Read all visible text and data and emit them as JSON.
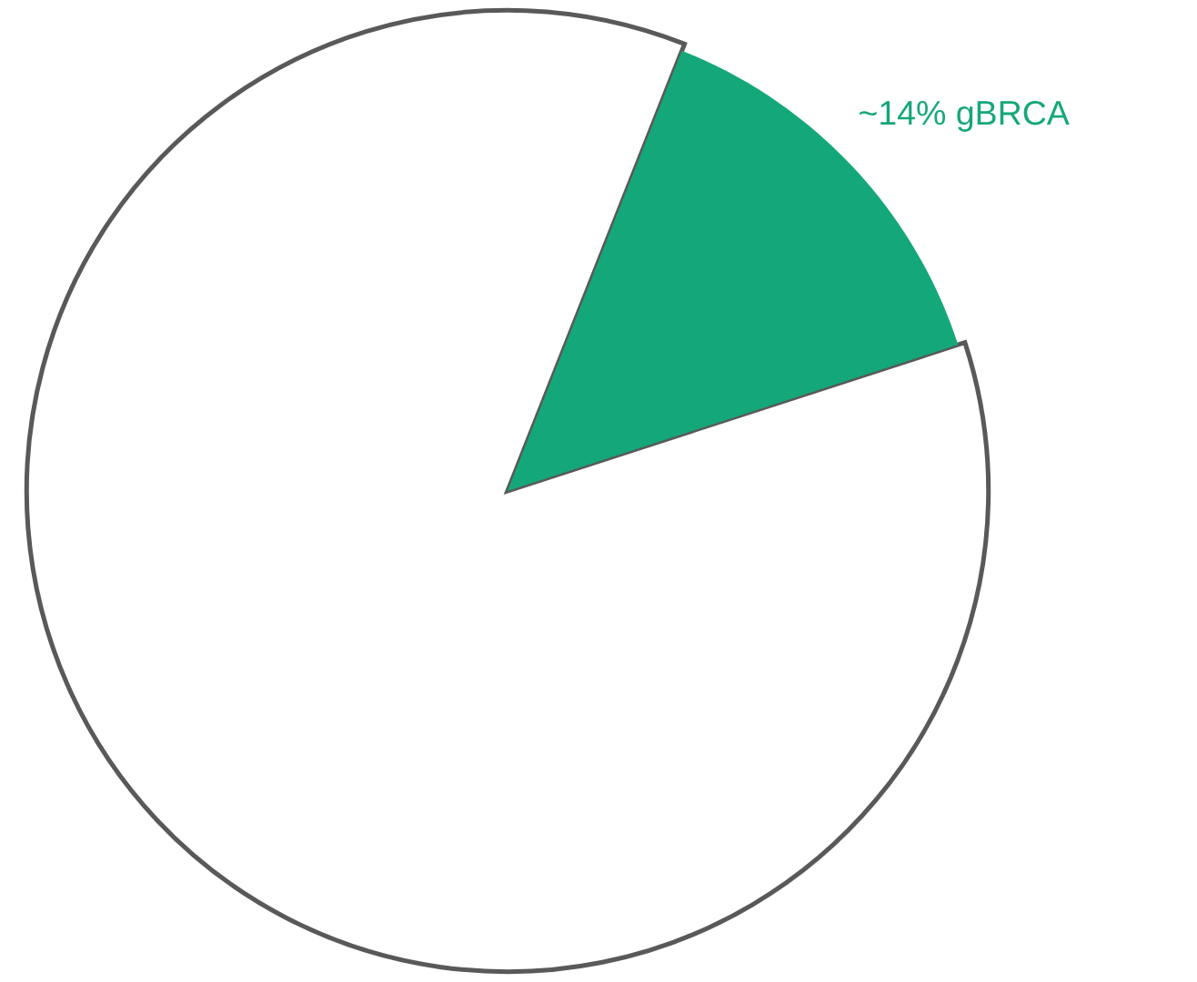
{
  "chart_data": {
    "type": "pie",
    "categories": [
      "~14% gBRCA",
      null
    ],
    "values": [
      14,
      86
    ],
    "colors": [
      "#14a77a",
      "#ffffff"
    ],
    "legend": false
  }
}
